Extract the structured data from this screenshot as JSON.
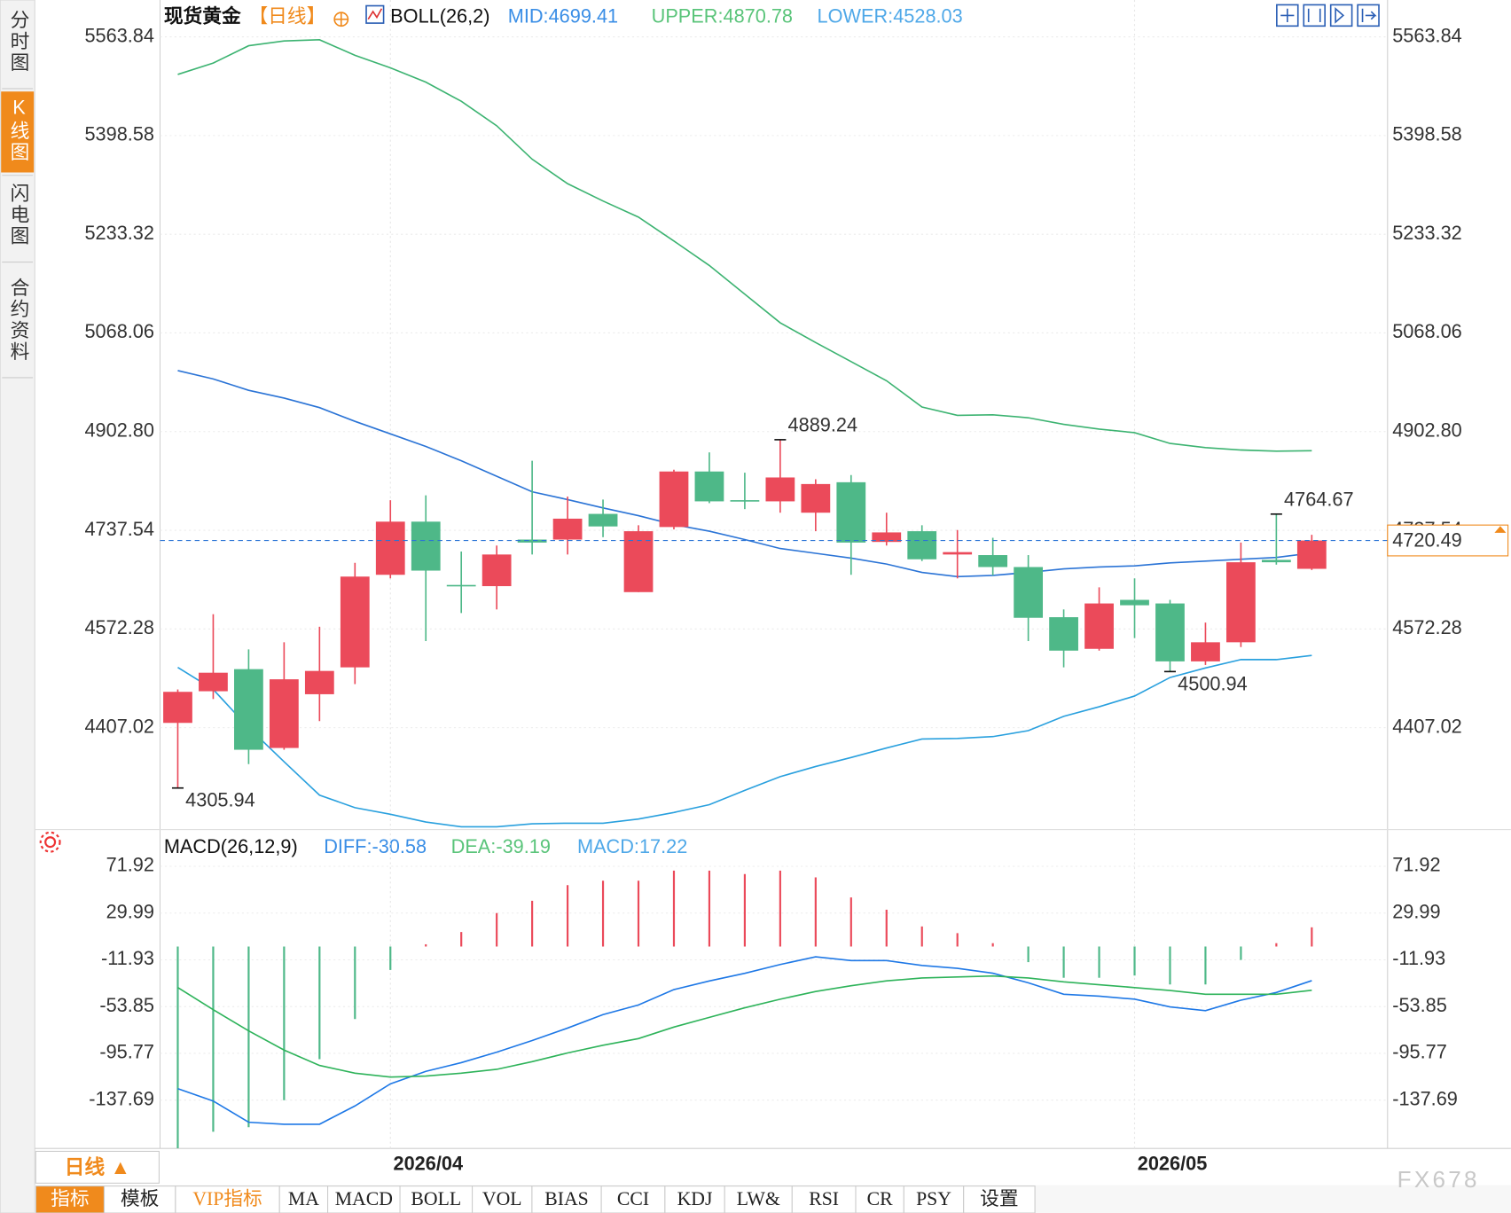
{
  "sidebar": [
    "分时图",
    "K线图",
    "闪电图",
    "合约资料"
  ],
  "header": {
    "symbol": "现货黄金",
    "period": "【日线】"
  },
  "period_selector": "日线 ▲",
  "tabs": [
    "指标",
    "模板",
    "VIP指标",
    "MA",
    "MACD",
    "BOLL",
    "VOL",
    "BIAS",
    "CCI",
    "KDJ",
    "LW&",
    "RSI",
    "CR",
    "PSY",
    "设置"
  ],
  "watermark": "FX678",
  "chart_data": [
    {
      "type": "candlestick",
      "title": "BOLL(26,2)",
      "categories": [
        null,
        null,
        null,
        null,
        null,
        null,
        "2026/04",
        null,
        null,
        null,
        null,
        null,
        null,
        null,
        null,
        null,
        null,
        null,
        null,
        null,
        null,
        null,
        null,
        null,
        null,
        null,
        null,
        "2026/05",
        null,
        null,
        null,
        null,
        null
      ],
      "open": [
        4415,
        4468,
        4505,
        4373,
        4463,
        4508,
        4663,
        4752,
        4646,
        4644,
        4722,
        4722,
        4765,
        4634,
        4743,
        4836,
        4788,
        4786,
        4767,
        4818,
        4718,
        4736,
        4697,
        4696,
        4676,
        4592,
        4539,
        4621,
        4615,
        4518,
        4550,
        4688,
        4673
      ],
      "high": [
        4471,
        4597,
        4538,
        4550,
        4576,
        4683,
        4788,
        4796,
        4702,
        4712,
        4854,
        4794,
        4789,
        4746,
        4839,
        4868,
        4834,
        4889.24,
        4823,
        4830,
        4767,
        4746,
        4738,
        4725,
        4696,
        4605,
        4642,
        4657,
        4621,
        4583,
        4717,
        4764.67,
        4730
      ],
      "low": [
        4305.94,
        4455,
        4346,
        4370,
        4418,
        4480,
        4657,
        4552,
        4599,
        4605,
        4697,
        4697,
        4726,
        4634,
        4739,
        4783,
        4773,
        4767,
        4736,
        4663,
        4712,
        4686,
        4657,
        4662,
        4552,
        4508,
        4536,
        4557,
        4500.94,
        4512,
        4542,
        4680,
        4671
      ],
      "close": [
        4467,
        4499,
        4370,
        4488,
        4502,
        4660,
        4752,
        4670,
        4644,
        4697,
        4717,
        4757,
        4744,
        4736,
        4836,
        4786,
        4786,
        4826,
        4815,
        4717,
        4734,
        4689,
        4701,
        4676,
        4591,
        4536,
        4615,
        4612,
        4518,
        4550,
        4684,
        4684,
        4720.49
      ],
      "up_color": "#eb4a5a",
      "down_color": "#4eb888",
      "series": [
        {
          "name": "MID:4699.41",
          "color": "#2b74d6",
          "text_color": "#3a8ee6",
          "values": [
            5005,
            4991,
            4972,
            4959,
            4943,
            4920,
            4899,
            4878,
            4854,
            4828,
            4802,
            4789,
            4775,
            4762,
            4747,
            4736,
            4722,
            4707,
            4699,
            4691,
            4681,
            4667,
            4660,
            4662,
            4667,
            4673,
            4676,
            4678,
            4683,
            4686,
            4689,
            4692,
            4699.41
          ]
        },
        {
          "name": "UPPER:4870.78",
          "color": "#3cb371",
          "text_color": "#5ac47a",
          "values": [
            5501,
            5520,
            5549,
            5557,
            5559,
            5533,
            5512,
            5488,
            5456,
            5415,
            5359,
            5318,
            5289,
            5262,
            5222,
            5181,
            5133,
            5085,
            5052,
            5020,
            4988,
            4944,
            4930,
            4931,
            4926,
            4915,
            4907,
            4901,
            4883,
            4876,
            4872,
            4870,
            4870.78
          ]
        },
        {
          "name": "LOWER:4528.03",
          "color": "#29a0de",
          "text_color": "#4fa8e8",
          "values": [
            4508,
            4471,
            4407,
            4350,
            4294,
            4273,
            4262,
            4249,
            4241,
            4241,
            4246,
            4247,
            4247,
            4254,
            4265,
            4278,
            4302,
            4325,
            4342,
            4357,
            4373,
            4388,
            4389,
            4392,
            4402,
            4426,
            4442,
            4460,
            4491,
            4507,
            4521,
            4521,
            4528.03
          ]
        }
      ],
      "ylim": [
        4238,
        5577.2
      ],
      "yticks": [
        5563.84,
        5398.58,
        5233.32,
        5068.06,
        {
          "value": 4902.8,
          "label": "4902.80"
        },
        4737.54,
        4572.28,
        4407.02
      ],
      "grid": true,
      "last_price_line": true,
      "last_price_color": "#f08a1c"
    },
    {
      "type": "macd",
      "title": "MACD(26,12,9)",
      "up_color": "#eb4a5a",
      "down_color": "#4eb888",
      "series": [
        {
          "name": "DIFF:-30.58",
          "kind": "line",
          "color": "#1e78e6",
          "text_color": "#3a8ee6",
          "values": [
            -127.4,
            -138.5,
            -157.5,
            -159.3,
            -159.3,
            -142.9,
            -123.1,
            -111.9,
            -104.1,
            -94.7,
            -84.3,
            -73.1,
            -61.0,
            -52.4,
            -38.6,
            -30.9,
            -24.0,
            -16.1,
            -9.2,
            -12.6,
            -12.6,
            -17.0,
            -19.5,
            -23.9,
            -32.5,
            -42.8,
            -44.5,
            -47.2,
            -54.1,
            -57.5,
            -48.1,
            -41.2,
            -30.58
          ]
        },
        {
          "name": "DEA:-39.19",
          "kind": "line",
          "color": "#2eb35a",
          "text_color": "#5ac47a",
          "values": [
            -36.7,
            -56.6,
            -75.6,
            -92.8,
            -106.6,
            -113.5,
            -117.0,
            -116.1,
            -113.5,
            -110.1,
            -103.2,
            -95.4,
            -88.5,
            -82.5,
            -72.2,
            -63.5,
            -54.9,
            -47.2,
            -40.3,
            -35.1,
            -30.8,
            -28.2,
            -27.3,
            -26.4,
            -28.2,
            -31.7,
            -34.2,
            -36.8,
            -39.4,
            -42.8,
            -42.8,
            -42.8,
            -39.19
          ]
        },
        {
          "name": "MACD:17.22",
          "kind": "histogram",
          "text_color": "#4fa8e8",
          "values": [
            -180.8,
            -166,
            -162,
            -137.7,
            -101,
            -65,
            -21,
            2,
            13,
            30,
            41,
            55,
            59,
            59,
            68,
            68,
            65,
            68,
            62,
            44,
            33,
            18,
            12,
            3,
            -14,
            -28,
            -28,
            -26,
            -34,
            -34,
            -12,
            3,
            17.22
          ]
        }
      ],
      "ylim": [
        -181,
        104
      ],
      "yticks": [
        71.92,
        29.99,
        -11.93,
        -53.85,
        -95.77,
        -137.69
      ],
      "grid": true
    }
  ]
}
